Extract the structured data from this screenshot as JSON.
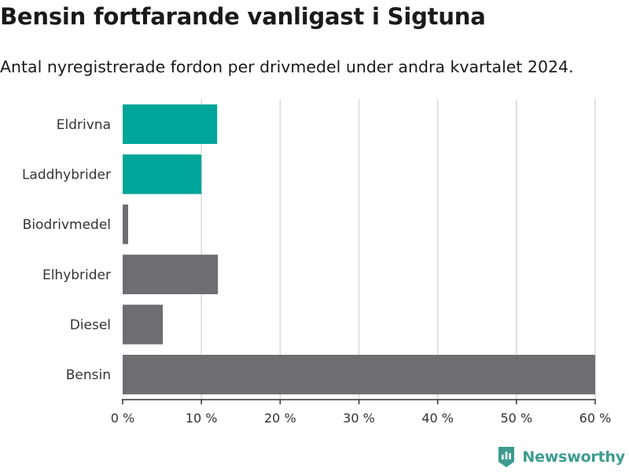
{
  "header": {
    "title": "Bensin fortfarande vanligast i Sigtuna",
    "subtitle": "Antal nyregistrerade fordon per drivmedel under andra kvartalet 2024."
  },
  "chart_data": {
    "type": "bar",
    "orientation": "horizontal",
    "title": "Bensin fortfarande vanligast i Sigtuna",
    "subtitle": "Antal nyregistrerade fordon per drivmedel under andra kvartalet 2024.",
    "xlabel": "",
    "ylabel": "",
    "categories": [
      "Eldrivna",
      "Laddhybrider",
      "Biodrivmedel",
      "Elhybrider",
      "Diesel",
      "Bensin"
    ],
    "values": [
      12.0,
      10.0,
      0.7,
      12.1,
      5.1,
      60.0
    ],
    "unit": "%",
    "highlighted": [
      "Eldrivna",
      "Laddhybrider"
    ],
    "xlim": [
      0,
      60
    ],
    "xticks": [
      0,
      10,
      20,
      30,
      40,
      50,
      60
    ],
    "xtick_labels": [
      "0 %",
      "10 %",
      "20 %",
      "30 %",
      "40 %",
      "50 %",
      "60 %"
    ],
    "grid": true,
    "colors": {
      "highlight": "#00a699",
      "default": "#6e6d72",
      "grid": "#d9d9d9",
      "axis": "#333333"
    }
  },
  "brand": {
    "name": "Newsworthy",
    "icon": "bar-chart-badge-icon",
    "color": "#3d9c8f"
  }
}
